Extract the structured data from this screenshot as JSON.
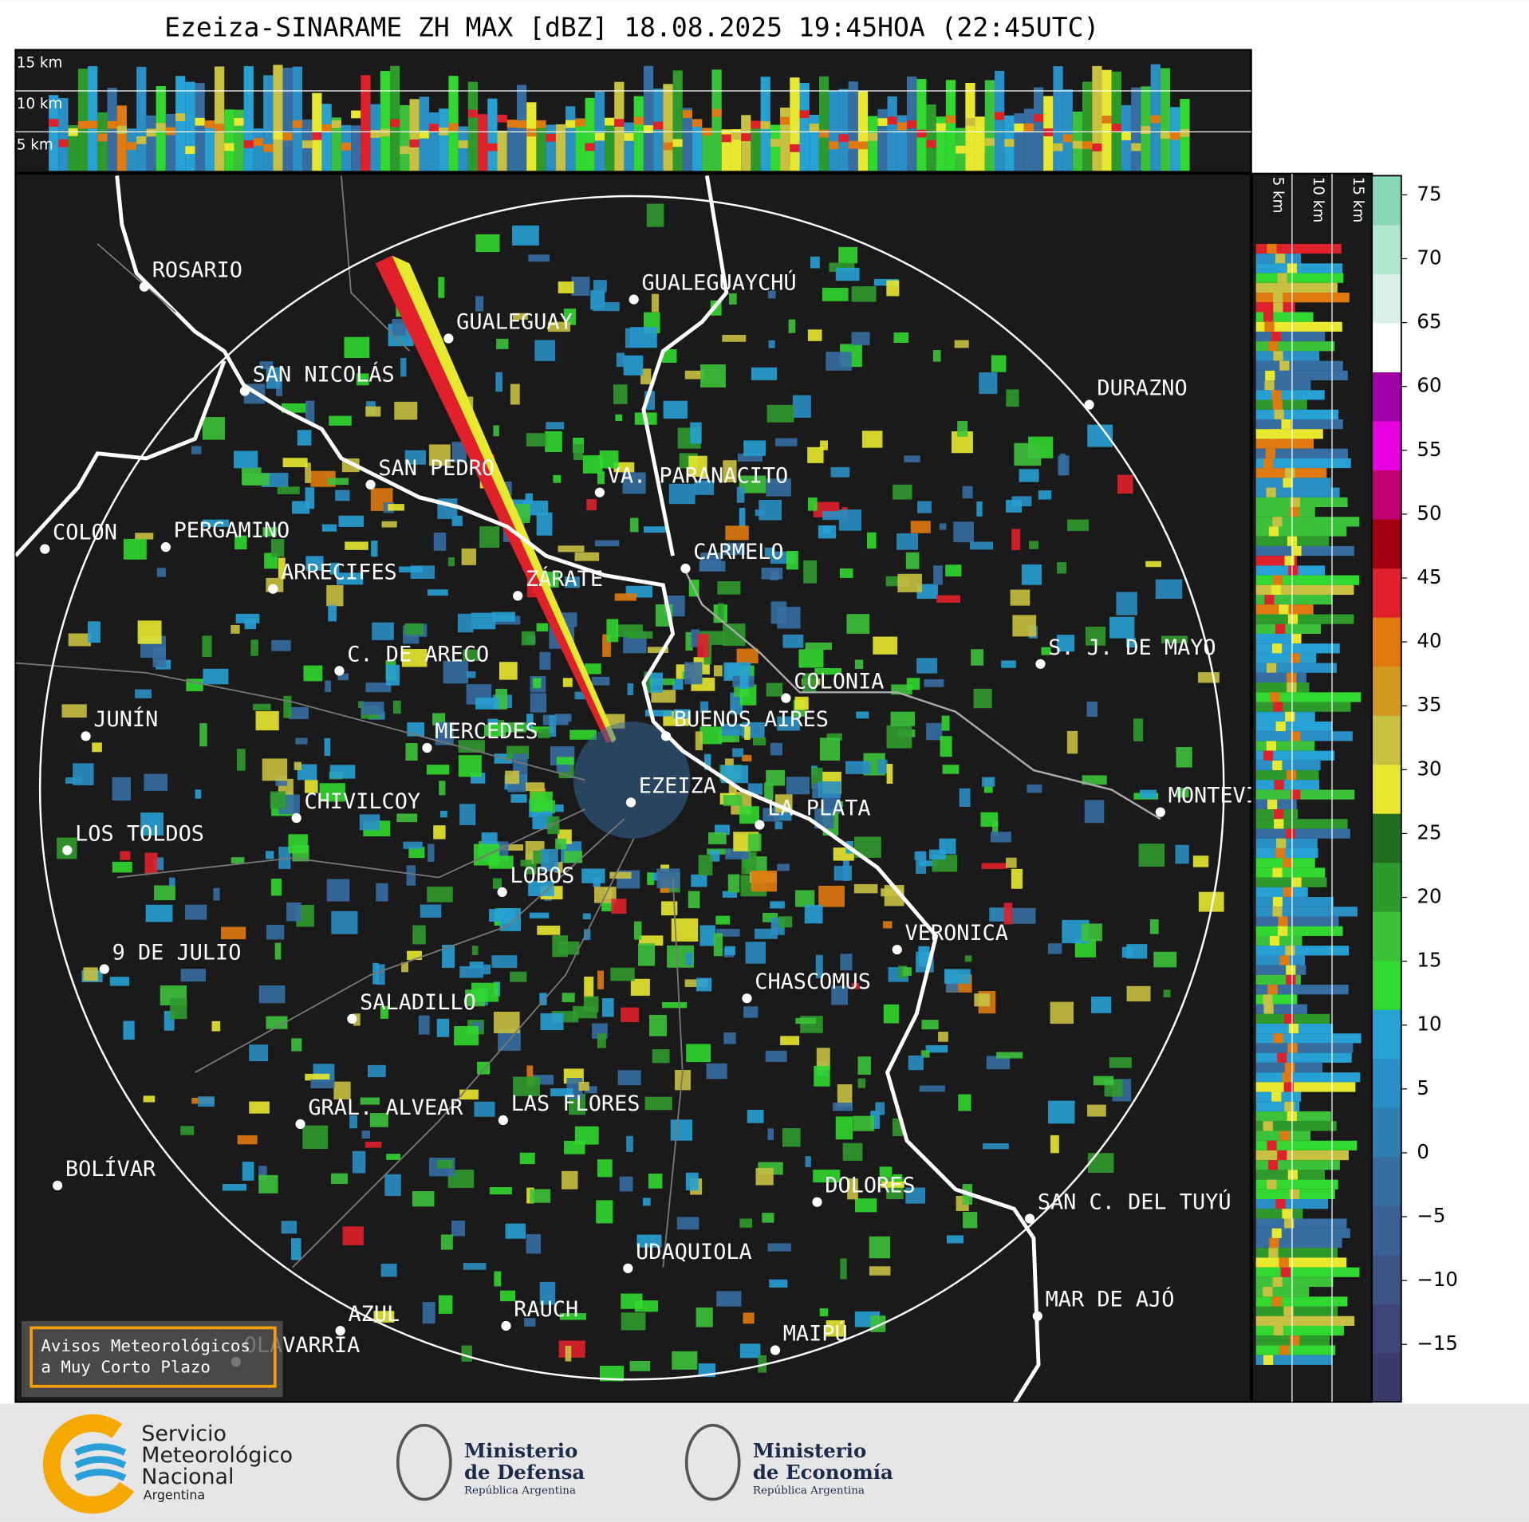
{
  "title": "Ezeiza-SINARAME ZH MAX [dBZ] 18.08.2025 19:45HOA (22:45UTC)",
  "top_panel": {
    "heights": [
      "15 km",
      "10 km",
      "5 km"
    ]
  },
  "side_panel": {
    "heights": [
      "5 km",
      "10 km",
      "15 km"
    ]
  },
  "cities": [
    "ROSARIO",
    "GUALEGUAYCHÚ",
    "GUALEGUAY",
    "SAN NICOLÁS",
    "DURAZNO",
    "SAN PEDRO",
    "VA. PARANACITO",
    "COLON",
    "PERGAMINO",
    "CARMELO",
    "ARRECIFES",
    "ZÁRATE",
    "S. J. DE MAYO",
    "C. DE ARECO",
    "COLONIA",
    "BUENOS AIRES",
    "JUNÍN",
    "MERCEDES",
    "MONTEVIDEO",
    "EZEIZA",
    "LA PLATA",
    "CHIVILCOY",
    "LOS TOLDOS",
    "LOBOS",
    "VERONICA",
    "9 DE JULIO",
    "CHASCOMUS",
    "SALADILLO",
    "GRAL. ALVEAR",
    "LAS FLORES",
    "BOLÍVAR",
    "DOLORES",
    "SAN C. DEL TUYÚ",
    "UDAQUIOLA",
    "MAR DE AJÓ",
    "RAUCH",
    "AZUL",
    "OLAVARRÍA",
    "MAIPÚ"
  ],
  "warning_box": [
    "Avisos Meteorológicos",
    "a Muy Corto Plazo"
  ],
  "colorbar": {
    "lim": [
      -19.5,
      76.5
    ],
    "ticks": [
      {
        "value": -15,
        "label": "−15"
      },
      {
        "value": -10,
        "label": "−10"
      },
      {
        "value": -5,
        "label": "−5"
      },
      0,
      5,
      10,
      15,
      20,
      25,
      30,
      35,
      40,
      45,
      50,
      55,
      60,
      65,
      70,
      75
    ],
    "colors": [
      "#3b3b6b",
      "#3f4578",
      "#3d5286",
      "#3a6094",
      "#366ea2",
      "#2f7fb3",
      "#2a8fc4",
      "#27a0d4",
      "#31d82f",
      "#3cc23a",
      "#2f9a2c",
      "#236d20",
      "#e8e82e",
      "#c8c040",
      "#d09a20",
      "#e07a10",
      "#e0202a",
      "#a00010",
      "#c00070",
      "#e800e0",
      "#a000a8",
      "#ffffff",
      "#d8f0e8",
      "#b0e8d0",
      "#88d8b8"
    ]
  },
  "footer": {
    "smn": [
      "Servicio",
      "Meteorológico",
      "Nacional",
      "Argentina"
    ],
    "defensa": [
      "Ministerio",
      "de Defensa",
      "República Argentina"
    ],
    "economia": [
      "Ministerio",
      "de Economía",
      "República Argentina"
    ]
  }
}
